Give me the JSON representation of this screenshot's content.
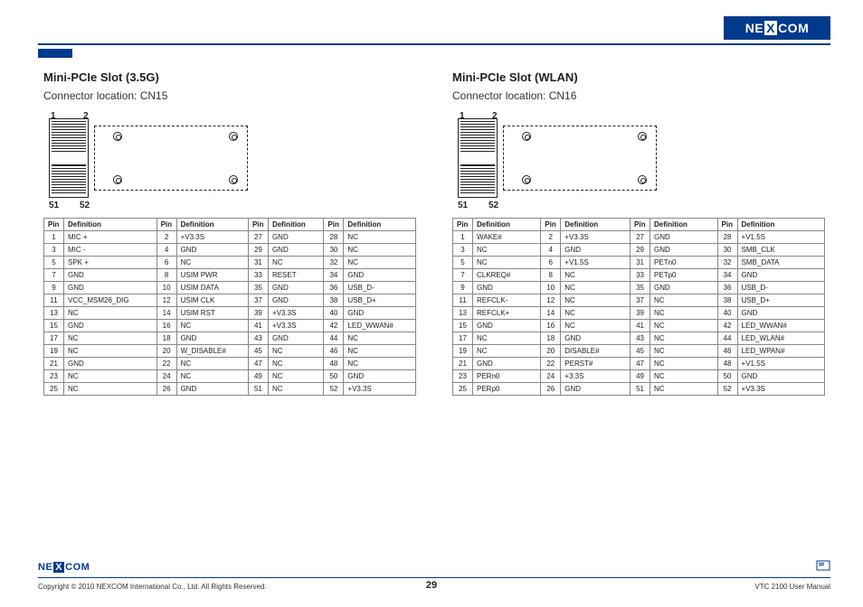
{
  "brand": "NEXCOM",
  "header": {
    "rule_color": "#003a8c"
  },
  "slots": {
    "left": {
      "title": "Mini-PCIe Slot (3.5G)",
      "subtitle": "Connector location: CN15",
      "labels": {
        "tl": "1",
        "tr": "2",
        "bl": "51",
        "br": "52"
      },
      "table": {
        "headers": [
          "Pin",
          "Definition",
          "Pin",
          "Definition",
          "Pin",
          "Definition",
          "Pin",
          "Definition"
        ],
        "rows": [
          [
            "1",
            "MIC +",
            "2",
            "+V3.3S",
            "27",
            "GND",
            "28",
            "NC"
          ],
          [
            "3",
            "MIC -",
            "4",
            "GND",
            "29",
            "GND",
            "30",
            "NC"
          ],
          [
            "5",
            "SPK +",
            "6",
            "NC",
            "31",
            "NC",
            "32",
            "NC"
          ],
          [
            "7",
            "GND",
            "8",
            "USIM PWR",
            "33",
            "RESET",
            "34",
            "GND"
          ],
          [
            "9",
            "GND",
            "10",
            "USIM DATA",
            "35",
            "GND",
            "36",
            "USB_D-"
          ],
          [
            "11",
            "VCC_MSM26_DIG",
            "12",
            "USIM CLK",
            "37",
            "GND",
            "38",
            "USB_D+"
          ],
          [
            "13",
            "NC",
            "14",
            "USIM RST",
            "39",
            "+V3.3S",
            "40",
            "GND"
          ],
          [
            "15",
            "GND",
            "16",
            "NC",
            "41",
            "+V3.3S",
            "42",
            "LED_WWAN#"
          ],
          [
            "17",
            "NC",
            "18",
            "GND",
            "43",
            "GND",
            "44",
            "NC"
          ],
          [
            "19",
            "NC",
            "20",
            "W_DISABLE#",
            "45",
            "NC",
            "46",
            "NC"
          ],
          [
            "21",
            "GND",
            "22",
            "NC",
            "47",
            "NC",
            "48",
            "NC"
          ],
          [
            "23",
            "NC",
            "24",
            "NC",
            "49",
            "NC",
            "50",
            "GND"
          ],
          [
            "25",
            "NC",
            "26",
            "GND",
            "51",
            "NC",
            "52",
            "+V3.3S"
          ]
        ]
      }
    },
    "right": {
      "title": "Mini-PCIe Slot (WLAN)",
      "subtitle": "Connector location: CN16",
      "labels": {
        "tl": "1",
        "tr": "2",
        "bl": "51",
        "br": "52"
      },
      "table": {
        "headers": [
          "Pin",
          "Definition",
          "Pin",
          "Definition",
          "Pin",
          "Definition",
          "Pin",
          "Definition"
        ],
        "rows": [
          [
            "1",
            "WAKE#",
            "2",
            "+V3.3S",
            "27",
            "GND",
            "28",
            "+V1.5S"
          ],
          [
            "3",
            "NC",
            "4",
            "GND",
            "29",
            "GND",
            "30",
            "SMB_CLK"
          ],
          [
            "5",
            "NC",
            "6",
            "+V1.5S",
            "31",
            "PETn0",
            "32",
            "SMB_DATA"
          ],
          [
            "7",
            "CLKREQ#",
            "8",
            "NC",
            "33",
            "PETp0",
            "34",
            "GND"
          ],
          [
            "9",
            "GND",
            "10",
            "NC",
            "35",
            "GND",
            "36",
            "USB_D-"
          ],
          [
            "11",
            "REFCLK-",
            "12",
            "NC",
            "37",
            "NC",
            "38",
            "USB_D+"
          ],
          [
            "13",
            "REFCLK+",
            "14",
            "NC",
            "39",
            "NC",
            "40",
            "GND"
          ],
          [
            "15",
            "GND",
            "16",
            "NC",
            "41",
            "NC",
            "42",
            "LED_WWAN#"
          ],
          [
            "17",
            "NC",
            "18",
            "GND",
            "43",
            "NC",
            "44",
            "LED_WLAN#"
          ],
          [
            "19",
            "NC",
            "20",
            "DISABLE#",
            "45",
            "NC",
            "46",
            "LED_WPAN#"
          ],
          [
            "21",
            "GND",
            "22",
            "PERST#",
            "47",
            "NC",
            "48",
            "+V1.5S"
          ],
          [
            "23",
            "PERn0",
            "24",
            "+3.3S",
            "49",
            "NC",
            "50",
            "GND"
          ],
          [
            "25",
            "PERp0",
            "26",
            "GND",
            "51",
            "NC",
            "52",
            "+V3.3S"
          ]
        ]
      }
    }
  },
  "footer": {
    "copyright": "Copyright © 2010 NEXCOM International Co., Ltd. All Rights Reserved.",
    "page": "29",
    "manual": "VTC 2100 User Manual"
  }
}
